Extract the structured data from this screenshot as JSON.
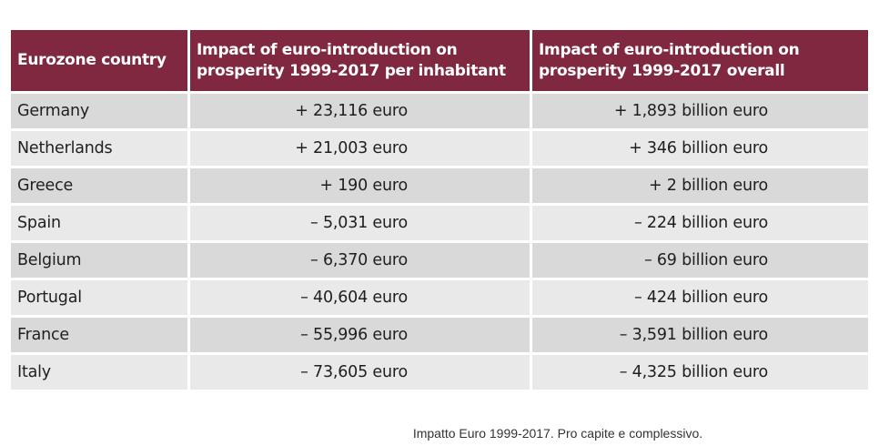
{
  "table": {
    "headers": [
      "Eurozone country",
      "Impact of euro-introduction on prosperity 1999-2017 per inhabitant",
      "Impact of euro-introduction on prosperity 1999-2017 overall"
    ],
    "rows": [
      {
        "country": "Germany",
        "per_inhabitant": "+ 23,116 euro",
        "overall": "+ 1,893 billion euro"
      },
      {
        "country": "Netherlands",
        "per_inhabitant": "+ 21,003 euro",
        "overall": "+ 346 billion euro"
      },
      {
        "country": "Greece",
        "per_inhabitant": "+ 190 euro",
        "overall": "+ 2 billion euro"
      },
      {
        "country": "Spain",
        "per_inhabitant": "– 5,031 euro",
        "overall": "– 224 billion euro"
      },
      {
        "country": "Belgium",
        "per_inhabitant": "– 6,370 euro",
        "overall": "– 69 billion euro"
      },
      {
        "country": "Portugal",
        "per_inhabitant": "– 40,604 euro",
        "overall": "– 424 billion euro"
      },
      {
        "country": "France",
        "per_inhabitant": "– 55,996 euro",
        "overall": "– 3,591 billion euro"
      },
      {
        "country": "Italy",
        "per_inhabitant": "– 73,605 euro",
        "overall": "– 4,325 billion euro"
      }
    ]
  },
  "caption": "Impatto Euro 1999-2017. Pro capite e complessivo.",
  "colors": {
    "header_bg": "#7f2840",
    "row_dark": "#d9d9d9",
    "row_light": "#e9e9e9"
  }
}
